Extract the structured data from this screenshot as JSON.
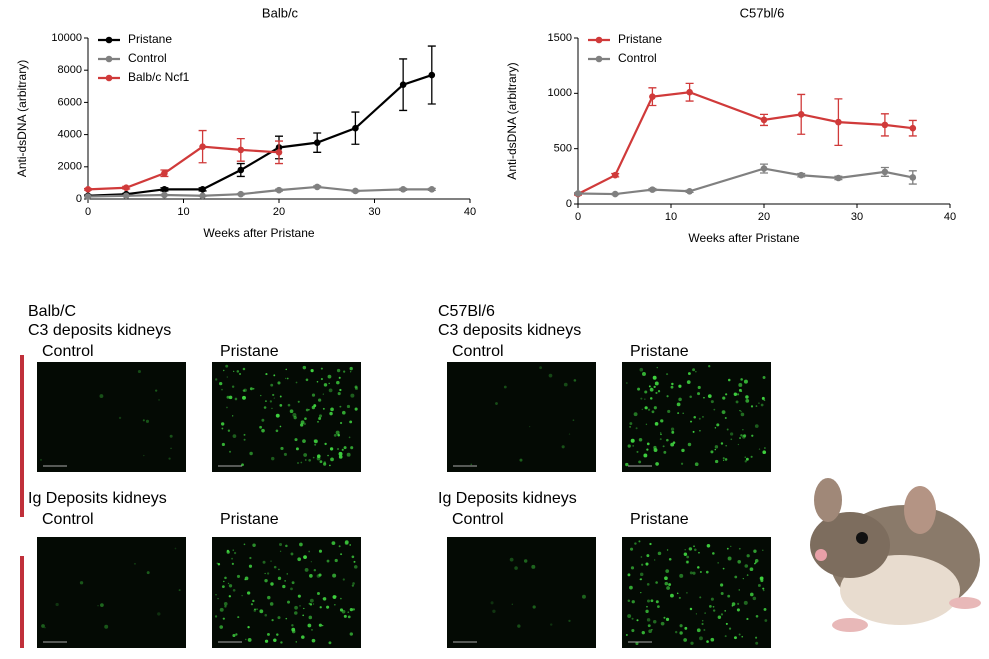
{
  "chart_data": [
    {
      "type": "line",
      "title": "Balb/c",
      "xlabel": "Weeks after Pristane",
      "ylabel": "Anti-dsDNA (arbitrary)",
      "xlim": [
        0,
        40
      ],
      "xticks": [
        0,
        10,
        20,
        30,
        40
      ],
      "ylim": [
        0,
        10000
      ],
      "yticks": [
        0,
        2000,
        4000,
        6000,
        8000,
        10000
      ],
      "legend": "upper left",
      "series": [
        {
          "name": "Pristane",
          "color": "#000000",
          "x": [
            0,
            4,
            8,
            12,
            16,
            20,
            24,
            28,
            33,
            36
          ],
          "values": [
            200,
            300,
            600,
            600,
            1800,
            3200,
            3500,
            4400,
            7100,
            7700
          ],
          "errors": [
            50,
            50,
            100,
            100,
            400,
            700,
            600,
            1000,
            1600,
            1800
          ]
        },
        {
          "name": "Control",
          "color": "#808080",
          "x": [
            0,
            4,
            8,
            12,
            16,
            20,
            24,
            28,
            33,
            36
          ],
          "values": [
            150,
            200,
            250,
            200,
            300,
            550,
            750,
            500,
            600,
            600
          ],
          "errors": [
            20,
            20,
            30,
            30,
            40,
            60,
            60,
            50,
            60,
            60
          ]
        },
        {
          "name": "Balb/c Ncf1",
          "color": "#d03a3a",
          "x": [
            0,
            4,
            8,
            12,
            16,
            20
          ],
          "values": [
            600,
            700,
            1600,
            3250,
            3050,
            2900
          ],
          "errors": [
            50,
            80,
            200,
            1000,
            700,
            700
          ]
        }
      ]
    },
    {
      "type": "line",
      "title": "C57bl/6",
      "xlabel": "Weeks after Pristane",
      "ylabel": "Anti-dsDNA (arbitrary)",
      "xlim": [
        0,
        40
      ],
      "xticks": [
        0,
        10,
        20,
        30,
        40
      ],
      "ylim": [
        0,
        1500
      ],
      "yticks": [
        0,
        500,
        1000,
        1500
      ],
      "legend": "upper left",
      "series": [
        {
          "name": "Pristane",
          "color": "#d03a3a",
          "x": [
            0,
            4,
            8,
            12,
            20,
            24,
            28,
            33,
            36
          ],
          "values": [
            90,
            260,
            970,
            1010,
            760,
            810,
            740,
            715,
            685
          ],
          "errors": [
            10,
            15,
            80,
            80,
            50,
            180,
            210,
            100,
            70
          ]
        },
        {
          "name": "Control",
          "color": "#808080",
          "x": [
            0,
            4,
            8,
            12,
            20,
            24,
            28,
            33,
            36
          ],
          "values": [
            95,
            90,
            130,
            115,
            320,
            260,
            235,
            290,
            240
          ],
          "errors": [
            5,
            5,
            10,
            10,
            40,
            15,
            15,
            40,
            60
          ]
        }
      ]
    }
  ],
  "panels": [
    {
      "strain": "Balb/C",
      "rows": [
        {
          "title": "C3 deposits kidneys",
          "labels": [
            "Control",
            "Pristane"
          ]
        },
        {
          "title": "Ig Deposits kidneys",
          "labels": [
            "Control",
            "Pristane"
          ]
        }
      ]
    },
    {
      "strain": "C57Bl/6",
      "rows": [
        {
          "title": "C3 deposits kidneys",
          "labels": [
            "Control",
            "Pristane"
          ]
        },
        {
          "title": "Ig Deposits kidneys",
          "labels": [
            "Control",
            "Pristane"
          ]
        }
      ]
    }
  ]
}
